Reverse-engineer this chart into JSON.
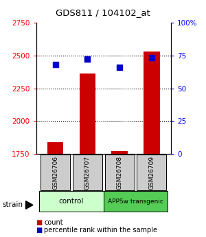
{
  "title": "GDS811 / 104102_at",
  "samples": [
    "GSM26706",
    "GSM26707",
    "GSM26708",
    "GSM26709"
  ],
  "count_values": [
    1840,
    2360,
    1770,
    2530
  ],
  "percentile_values": [
    68,
    72,
    66,
    73
  ],
  "ylim_left": [
    1750,
    2750
  ],
  "ylim_right": [
    0,
    100
  ],
  "yticks_left": [
    1750,
    2000,
    2250,
    2500,
    2750
  ],
  "yticks_right": [
    0,
    25,
    50,
    75,
    100
  ],
  "ytick_labels_right": [
    "0",
    "25",
    "50",
    "75",
    "100%"
  ],
  "bar_color": "#cc0000",
  "dot_color": "#0000cc",
  "groups": [
    {
      "label": "control",
      "indices": [
        0,
        1
      ],
      "color": "#ccffcc"
    },
    {
      "label": "APPSw transgenic",
      "indices": [
        2,
        3
      ],
      "color": "#55cc55"
    }
  ],
  "bar_width": 0.5,
  "dot_size": 40,
  "sample_box_color": "#cccccc",
  "grid_dotted_ticks": [
    2000,
    2250,
    2500
  ]
}
